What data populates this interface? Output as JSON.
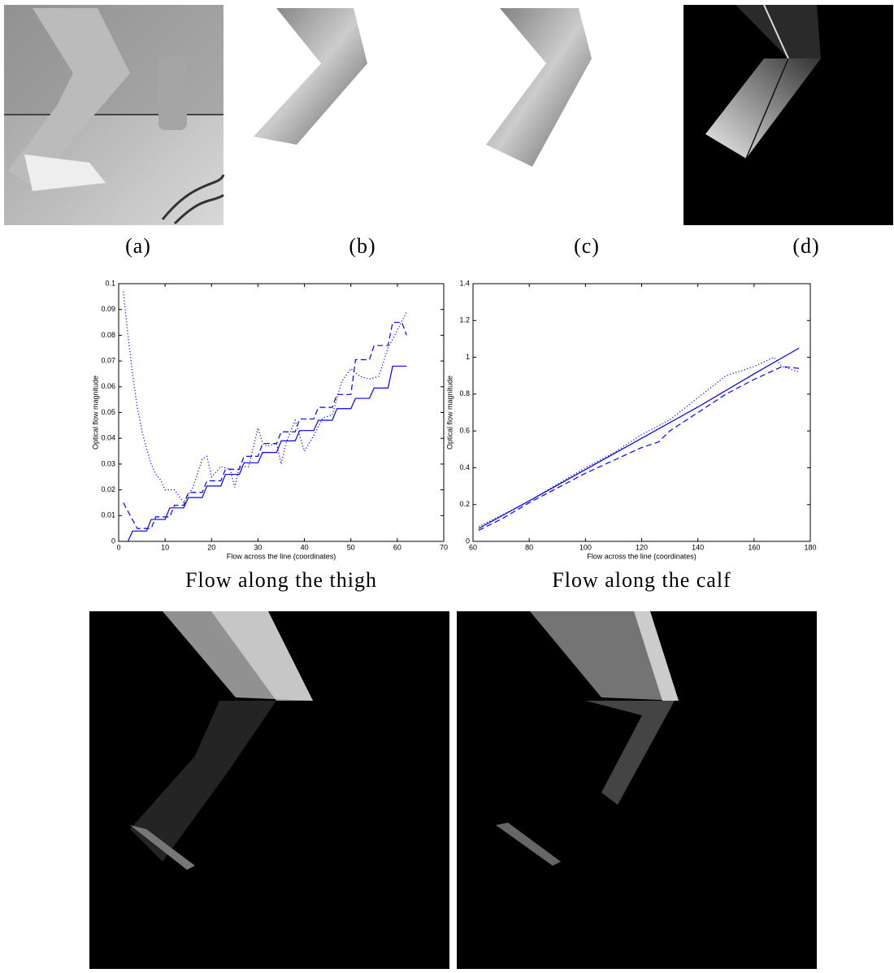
{
  "figure": {
    "panel_labels": [
      "(a)",
      "(b)",
      "(c)",
      "(d)"
    ]
  },
  "chart_data": [
    {
      "type": "line",
      "title": "Flow along the thigh",
      "x_label": "Flow across the line (coordinates)",
      "y_label": "Optical flow magnitude",
      "xlim": [
        0,
        70
      ],
      "xticks": [
        0,
        10,
        20,
        30,
        40,
        50,
        60,
        70
      ],
      "ylim": [
        0,
        0.1
      ],
      "yticks": [
        0,
        0.01,
        0.02,
        0.03,
        0.04,
        0.05,
        0.06,
        0.07,
        0.08,
        0.09,
        0.1
      ],
      "series": [
        {
          "color": "#0000ff",
          "style": "solid",
          "x": [
            2,
            3,
            6,
            7,
            10,
            11,
            14,
            15,
            18,
            19,
            22,
            23,
            26,
            27,
            30,
            31,
            34,
            35,
            38,
            39,
            42,
            43,
            46,
            47,
            50,
            51,
            54,
            55,
            58,
            59,
            62
          ],
          "values": [
            0,
            0.004,
            0.004,
            0.0085,
            0.0085,
            0.013,
            0.013,
            0.017,
            0.017,
            0.0215,
            0.0215,
            0.026,
            0.026,
            0.0305,
            0.0305,
            0.0345,
            0.0345,
            0.039,
            0.039,
            0.043,
            0.043,
            0.047,
            0.047,
            0.0515,
            0.0515,
            0.0555,
            0.0555,
            0.0595,
            0.0595,
            0.068,
            0.068
          ]
        },
        {
          "color": "#0000ff",
          "style": "dashed",
          "x": [
            1,
            4,
            7,
            8,
            11,
            12,
            14,
            15,
            18,
            19,
            22,
            23,
            26,
            27,
            30,
            31,
            34,
            35,
            38,
            39,
            42,
            43,
            46,
            47,
            50,
            51,
            54,
            55,
            58,
            59,
            61,
            62
          ],
          "values": [
            0.015,
            0.005,
            0.005,
            0.0095,
            0.0095,
            0.014,
            0.014,
            0.019,
            0.019,
            0.0235,
            0.0235,
            0.028,
            0.028,
            0.033,
            0.033,
            0.038,
            0.038,
            0.0425,
            0.0425,
            0.0475,
            0.0475,
            0.052,
            0.052,
            0.057,
            0.057,
            0.0705,
            0.0705,
            0.076,
            0.076,
            0.085,
            0.085,
            0.08
          ]
        },
        {
          "color": "#0000ff",
          "style": "dotted",
          "x": [
            1,
            2,
            3,
            4,
            5,
            6,
            7,
            8,
            9,
            10,
            12,
            14,
            16,
            18,
            19,
            20,
            22,
            24,
            25,
            26,
            28,
            30,
            31,
            32,
            34,
            35,
            36,
            38,
            40,
            42,
            44,
            46,
            48,
            50,
            52,
            54,
            56,
            58,
            60,
            62
          ],
          "values": [
            0.097,
            0.08,
            0.065,
            0.052,
            0.043,
            0.036,
            0.03,
            0.026,
            0.024,
            0.02,
            0.02,
            0.015,
            0.021,
            0.032,
            0.033,
            0.025,
            0.029,
            0.028,
            0.021,
            0.029,
            0.029,
            0.044,
            0.038,
            0.037,
            0.038,
            0.03,
            0.038,
            0.047,
            0.035,
            0.041,
            0.048,
            0.049,
            0.062,
            0.067,
            0.064,
            0.063,
            0.064,
            0.075,
            0.082,
            0.089
          ]
        }
      ]
    },
    {
      "type": "line",
      "title": "Flow along the calf",
      "x_label": "Flow across the line (coordinates)",
      "y_label": "Optical flow magnitude",
      "xlim": [
        60,
        180
      ],
      "xticks": [
        60,
        80,
        100,
        120,
        140,
        160,
        180
      ],
      "ylim": [
        0,
        1.4
      ],
      "yticks": [
        0,
        0.2,
        0.4,
        0.6,
        0.8,
        1,
        1.2,
        1.4
      ],
      "series": [
        {
          "color": "#0000ff",
          "style": "solid",
          "x": [
            62,
            80,
            100,
            120,
            140,
            160,
            176
          ],
          "values": [
            0.07,
            0.22,
            0.39,
            0.56,
            0.73,
            0.91,
            1.05
          ]
        },
        {
          "color": "#0000ff",
          "style": "dashed",
          "x": [
            62,
            70,
            80,
            90,
            100,
            110,
            120,
            126,
            130,
            140,
            150,
            160,
            170,
            176
          ],
          "values": [
            0.06,
            0.12,
            0.21,
            0.29,
            0.37,
            0.44,
            0.51,
            0.54,
            0.6,
            0.7,
            0.8,
            0.88,
            0.95,
            0.94
          ]
        },
        {
          "color": "#0000ff",
          "style": "dotted",
          "x": [
            62,
            70,
            80,
            90,
            100,
            110,
            120,
            130,
            140,
            150,
            160,
            167,
            170,
            176
          ],
          "values": [
            0.08,
            0.14,
            0.22,
            0.31,
            0.4,
            0.48,
            0.58,
            0.66,
            0.78,
            0.9,
            0.95,
            1.0,
            0.95,
            0.92
          ]
        }
      ]
    }
  ]
}
